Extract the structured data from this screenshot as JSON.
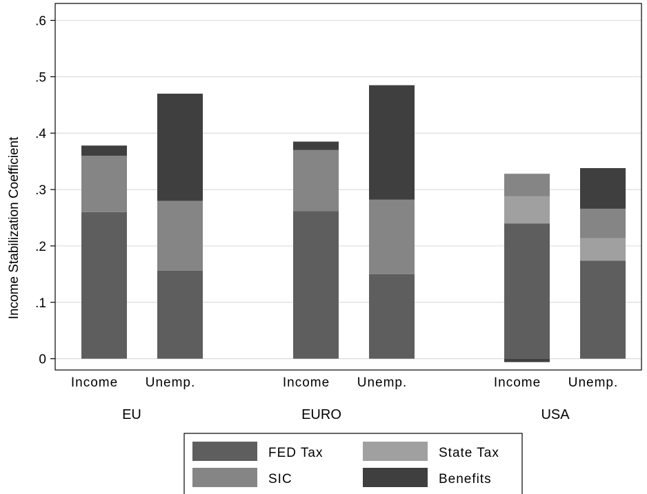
{
  "chart_data": {
    "type": "bar",
    "stacked": true,
    "ylabel": "Income Stabilization Coefficient",
    "ylim": [
      -0.02,
      0.63
    ],
    "yticks": [
      {
        "value": 0,
        "label": "0"
      },
      {
        "value": 0.1,
        "label": ".1"
      },
      {
        "value": 0.2,
        "label": ".2"
      },
      {
        "value": 0.3,
        "label": ".3"
      },
      {
        "value": 0.4,
        "label": ".4"
      },
      {
        "value": 0.5,
        "label": ".5"
      },
      {
        "value": 0.6,
        "label": ".6"
      }
    ],
    "grid": true,
    "legend_position": "bottom",
    "groups": [
      {
        "name": "EU",
        "bars": [
          {
            "label": "Income",
            "values": {
              "fed_tax": 0.26,
              "state_tax": 0.0,
              "sic": 0.1,
              "benefits": 0.018
            }
          },
          {
            "label": "Unemp.",
            "values": {
              "fed_tax": 0.156,
              "state_tax": 0.0,
              "sic": 0.124,
              "benefits": 0.19
            }
          }
        ]
      },
      {
        "name": "EURO",
        "bars": [
          {
            "label": "Income",
            "values": {
              "fed_tax": 0.262,
              "state_tax": 0.0,
              "sic": 0.108,
              "benefits": 0.015
            }
          },
          {
            "label": "Unemp.",
            "values": {
              "fed_tax": 0.15,
              "state_tax": 0.0,
              "sic": 0.132,
              "benefits": 0.203
            }
          }
        ]
      },
      {
        "name": "USA",
        "bars": [
          {
            "label": "Income",
            "values": {
              "fed_tax": 0.24,
              "state_tax": 0.048,
              "sic": 0.04,
              "benefits": -0.006
            }
          },
          {
            "label": "Unemp.",
            "values": {
              "fed_tax": 0.174,
              "state_tax": 0.04,
              "sic": 0.052,
              "benefits": 0.072
            }
          }
        ]
      }
    ],
    "series": [
      {
        "key": "fed_tax",
        "name": "FED Tax",
        "color": "#5e5e5e"
      },
      {
        "key": "state_tax",
        "name": "State Tax",
        "color": "#a0a0a0"
      },
      {
        "key": "sic",
        "name": "SIC",
        "color": "#858585"
      },
      {
        "key": "benefits",
        "name": "Benefits",
        "color": "#3f3f3f"
      }
    ],
    "stack_order": [
      "fed_tax",
      "state_tax",
      "sic",
      "benefits"
    ],
    "legend_order": [
      "fed_tax",
      "state_tax",
      "sic",
      "benefits"
    ],
    "grid_color": "#dcdcdc",
    "axis_color": "#000000"
  }
}
